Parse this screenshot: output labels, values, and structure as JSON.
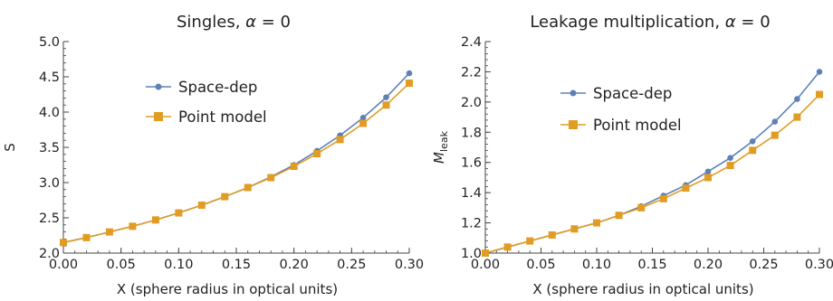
{
  "chart_data": [
    {
      "type": "line",
      "title": "Singles, α = 0",
      "title_parts": {
        "text": "Singles, ",
        "symbol": "α",
        "rest": " = 0"
      },
      "xlabel": "X (sphere radius in optical units)",
      "ylabel": "S",
      "xlim": [
        0.0,
        0.3
      ],
      "ylim": [
        2.0,
        5.0
      ],
      "xticks": [
        0.0,
        0.05,
        0.1,
        0.15,
        0.2,
        0.25,
        0.3
      ],
      "xtick_labels": [
        "0.00",
        "0.05",
        "0.10",
        "0.15",
        "0.20",
        "0.25",
        "0.30"
      ],
      "yticks": [
        2.0,
        2.5,
        3.0,
        3.5,
        4.0,
        4.5,
        5.0
      ],
      "ytick_labels": [
        "2.0",
        "2.5",
        "3.0",
        "3.5",
        "4.0",
        "4.5",
        "5.0"
      ],
      "grid": false,
      "legend_position": "upper-middle",
      "x": [
        0.0,
        0.02,
        0.04,
        0.06,
        0.08,
        0.1,
        0.12,
        0.14,
        0.16,
        0.18,
        0.2,
        0.22,
        0.24,
        0.26,
        0.28,
        0.3
      ],
      "series": [
        {
          "name": "Space-dep",
          "color": "#5e81b5",
          "marker": "circle",
          "values": [
            2.15,
            2.22,
            2.3,
            2.38,
            2.47,
            2.57,
            2.68,
            2.8,
            2.93,
            3.08,
            3.25,
            3.45,
            3.67,
            3.92,
            4.21,
            4.55
          ]
        },
        {
          "name": "Point model",
          "color": "#e19c24",
          "marker": "square",
          "values": [
            2.15,
            2.22,
            2.3,
            2.38,
            2.47,
            2.57,
            2.68,
            2.8,
            2.93,
            3.07,
            3.23,
            3.41,
            3.61,
            3.84,
            4.1,
            4.41
          ]
        }
      ]
    },
    {
      "type": "line",
      "title": "Leakage multiplication, α = 0",
      "title_parts": {
        "text": "Leakage multiplication, ",
        "symbol": "α",
        "rest": " = 0"
      },
      "xlabel": "X (sphere radius in optical units)",
      "ylabel": "M",
      "ylabel_subscript": "leak",
      "xlim": [
        0.0,
        0.3
      ],
      "ylim": [
        1.0,
        2.4
      ],
      "xticks": [
        0.0,
        0.05,
        0.1,
        0.15,
        0.2,
        0.25,
        0.3
      ],
      "xtick_labels": [
        "0.00",
        "0.05",
        "0.10",
        "0.15",
        "0.20",
        "0.25",
        "0.30"
      ],
      "yticks": [
        1.0,
        1.2,
        1.4,
        1.6,
        1.8,
        2.0,
        2.2,
        2.4
      ],
      "ytick_labels": [
        "1.0",
        "1.2",
        "1.4",
        "1.6",
        "1.8",
        "2.0",
        "2.2",
        "2.4"
      ],
      "grid": false,
      "legend_position": "upper-middle",
      "x": [
        0.0,
        0.02,
        0.04,
        0.06,
        0.08,
        0.1,
        0.12,
        0.14,
        0.16,
        0.18,
        0.2,
        0.22,
        0.24,
        0.26,
        0.28,
        0.3
      ],
      "series": [
        {
          "name": "Space-dep",
          "color": "#5e81b5",
          "marker": "circle",
          "values": [
            1.0,
            1.04,
            1.08,
            1.12,
            1.16,
            1.2,
            1.25,
            1.31,
            1.38,
            1.45,
            1.54,
            1.63,
            1.74,
            1.87,
            2.02,
            2.2
          ]
        },
        {
          "name": "Point model",
          "color": "#e19c24",
          "marker": "square",
          "values": [
            1.0,
            1.04,
            1.08,
            1.12,
            1.16,
            1.2,
            1.25,
            1.3,
            1.36,
            1.43,
            1.5,
            1.58,
            1.68,
            1.78,
            1.9,
            2.05
          ]
        }
      ]
    }
  ]
}
